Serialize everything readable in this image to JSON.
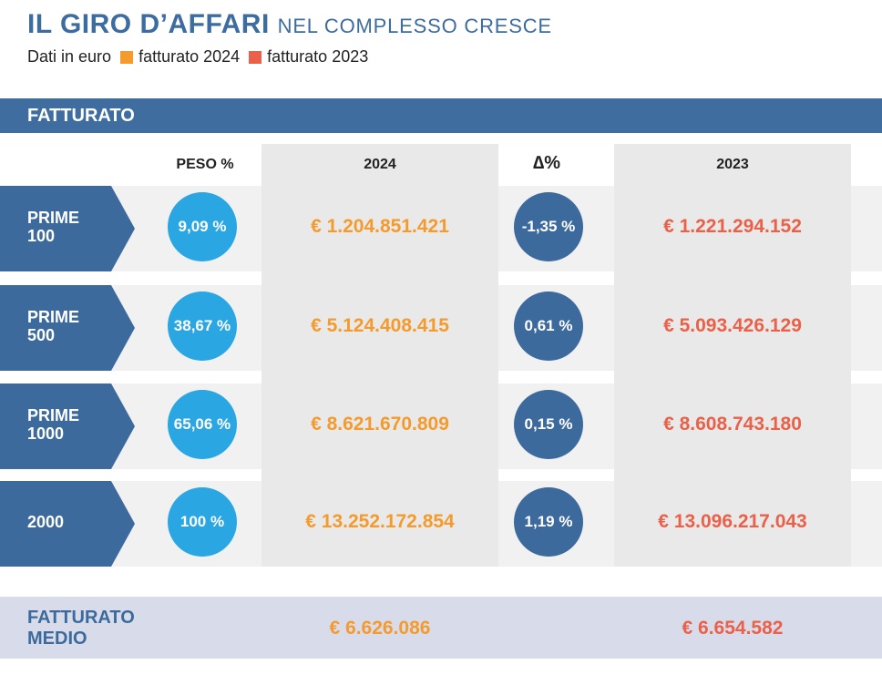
{
  "title": {
    "main": "IL GIRO D’AFFARI",
    "sub": "NEL COMPLESSO CRESCE"
  },
  "legend": {
    "prefix": "Dati in euro",
    "items": [
      {
        "label": "fatturato 2024",
        "color": "#f59a2d"
      },
      {
        "label": "fatturato 2023",
        "color": "#ea6048"
      }
    ]
  },
  "section": {
    "label": "FATTURATO"
  },
  "headers": {
    "peso": "PESO %",
    "y2024": "2024",
    "delta": "∆%",
    "y2023": "2023"
  },
  "rows": [
    {
      "label_line1": "PRIME",
      "label_line2": "100",
      "peso": "9,09 %",
      "v2024": "€ 1.204.851.421",
      "delta": "-1,35 %",
      "v2023": "€ 1.221.294.152"
    },
    {
      "label_line1": "PRIME",
      "label_line2": "500",
      "peso": "38,67 %",
      "v2024": "€ 5.124.408.415",
      "delta": "0,61 %",
      "v2023": "€ 5.093.426.129"
    },
    {
      "label_line1": "PRIME",
      "label_line2": "1000",
      "peso": "65,06 %",
      "v2024": "€ 8.621.670.809",
      "delta": "0,15 %",
      "v2023": "€ 8.608.743.180"
    },
    {
      "label_line1": "2000",
      "label_line2": "",
      "peso": "100 %",
      "v2024": "€ 13.252.172.854",
      "delta": "1,19 %",
      "v2023": "€ 13.096.217.043"
    }
  ],
  "medio": {
    "label_line1": "FATTURATO",
    "label_line2": "MEDIO",
    "v2024": "€ 6.626.086",
    "v2023": "€ 6.654.582"
  },
  "colors": {
    "blue_dark": "#3c6a9c",
    "blue_light": "#2aa6e2",
    "orange": "#f59a2d",
    "red": "#ea6048"
  }
}
